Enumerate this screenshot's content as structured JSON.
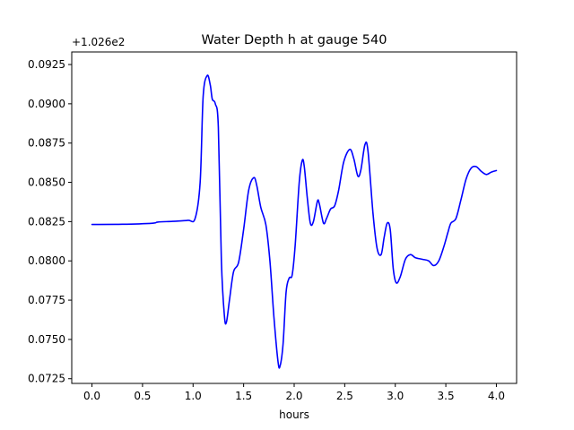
{
  "chart_data": {
    "type": "line",
    "title": "Water Depth h at gauge 540",
    "xlabel": "hours",
    "ylabel": "",
    "offset_label": "+1.026e2",
    "xlim": [
      -0.2,
      4.2
    ],
    "ylim": [
      0.0722,
      0.0933
    ],
    "x_ticks": [
      0.0,
      0.5,
      1.0,
      1.5,
      2.0,
      2.5,
      3.0,
      3.5,
      4.0
    ],
    "x_tick_labels": [
      "0.0",
      "0.5",
      "1.0",
      "1.5",
      "2.0",
      "2.5",
      "3.0",
      "3.5",
      "4.0"
    ],
    "y_ticks": [
      0.0725,
      0.075,
      0.0775,
      0.08,
      0.0825,
      0.085,
      0.0875,
      0.09,
      0.0925
    ],
    "y_tick_labels": [
      "0.0725",
      "0.0750",
      "0.0775",
      "0.0800",
      "0.0825",
      "0.0850",
      "0.0875",
      "0.0900",
      "0.0925"
    ],
    "grid": false,
    "series": [
      {
        "color": "#0000ff",
        "points": [
          [
            0.0,
            0.08232
          ],
          [
            0.3,
            0.08233
          ],
          [
            0.6,
            0.0824
          ],
          [
            0.65,
            0.08247
          ],
          [
            0.8,
            0.08252
          ],
          [
            0.95,
            0.08258
          ],
          [
            1.02,
            0.0827
          ],
          [
            1.07,
            0.085
          ],
          [
            1.1,
            0.0905
          ],
          [
            1.14,
            0.0918
          ],
          [
            1.17,
            0.0912
          ],
          [
            1.19,
            0.0903
          ],
          [
            1.22,
            0.09
          ],
          [
            1.25,
            0.0885
          ],
          [
            1.28,
            0.08
          ],
          [
            1.31,
            0.0765
          ],
          [
            1.33,
            0.0761
          ],
          [
            1.36,
            0.0775
          ],
          [
            1.4,
            0.0793
          ],
          [
            1.45,
            0.0799
          ],
          [
            1.5,
            0.082
          ],
          [
            1.55,
            0.0845
          ],
          [
            1.6,
            0.0853
          ],
          [
            1.63,
            0.0848
          ],
          [
            1.67,
            0.0834
          ],
          [
            1.72,
            0.0823
          ],
          [
            1.76,
            0.08
          ],
          [
            1.8,
            0.0764
          ],
          [
            1.84,
            0.0736
          ],
          [
            1.86,
            0.0733
          ],
          [
            1.89,
            0.0747
          ],
          [
            1.92,
            0.078
          ],
          [
            1.95,
            0.0789
          ],
          [
            1.98,
            0.0791
          ],
          [
            2.01,
            0.081
          ],
          [
            2.05,
            0.085
          ],
          [
            2.08,
            0.0864
          ],
          [
            2.1,
            0.086
          ],
          [
            2.13,
            0.084
          ],
          [
            2.16,
            0.0824
          ],
          [
            2.19,
            0.0825
          ],
          [
            2.23,
            0.0838
          ],
          [
            2.25,
            0.0836
          ],
          [
            2.29,
            0.0824
          ],
          [
            2.32,
            0.0827
          ],
          [
            2.36,
            0.0833
          ],
          [
            2.4,
            0.0835
          ],
          [
            2.44,
            0.0845
          ],
          [
            2.49,
            0.0863
          ],
          [
            2.55,
            0.0871
          ],
          [
            2.59,
            0.0865
          ],
          [
            2.63,
            0.0854
          ],
          [
            2.66,
            0.0858
          ],
          [
            2.7,
            0.0874
          ],
          [
            2.73,
            0.087
          ],
          [
            2.78,
            0.083
          ],
          [
            2.82,
            0.0808
          ],
          [
            2.86,
            0.0804
          ],
          [
            2.89,
            0.0815
          ],
          [
            2.92,
            0.0824
          ],
          [
            2.95,
            0.082
          ],
          [
            2.98,
            0.0795
          ],
          [
            3.01,
            0.0786
          ],
          [
            3.05,
            0.079
          ],
          [
            3.1,
            0.0801
          ],
          [
            3.15,
            0.0804
          ],
          [
            3.2,
            0.0802
          ],
          [
            3.27,
            0.0801
          ],
          [
            3.33,
            0.08
          ],
          [
            3.38,
            0.0797
          ],
          [
            3.43,
            0.08
          ],
          [
            3.48,
            0.0809
          ],
          [
            3.52,
            0.0818
          ],
          [
            3.55,
            0.0824
          ],
          [
            3.6,
            0.0827
          ],
          [
            3.65,
            0.0839
          ],
          [
            3.7,
            0.0852
          ],
          [
            3.75,
            0.0859
          ],
          [
            3.8,
            0.086
          ],
          [
            3.85,
            0.0857
          ],
          [
            3.9,
            0.0855
          ],
          [
            3.95,
            0.08565
          ],
          [
            4.0,
            0.08575
          ]
        ]
      }
    ]
  }
}
